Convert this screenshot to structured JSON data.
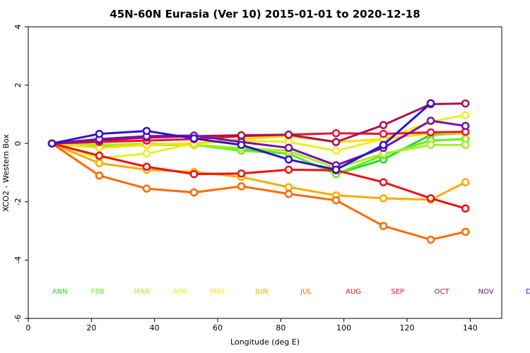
{
  "chart_data": {
    "type": "line",
    "title": "45N-60N Eurasia (Ver 10)   2015-01-01 to 2020-12-18",
    "xlabel": "Longitude (deg E)",
    "ylabel": "XCO2 - Western Box",
    "xlim": [
      0,
      150
    ],
    "ylim": [
      -6,
      4
    ],
    "xticks": [
      0,
      20,
      40,
      60,
      80,
      100,
      120,
      140
    ],
    "yticks": [
      -6,
      -4,
      -2,
      0,
      2,
      4
    ],
    "x": [
      7.5,
      22.5,
      37.5,
      52.5,
      67.5,
      82.5,
      97.5,
      112.5,
      127.5,
      138.5
    ],
    "legend_y": -5.15,
    "series": [
      {
        "name": "ANN",
        "color": "#22dd22",
        "label_x": 10,
        "values": [
          0,
          -0.1,
          0.0,
          -0.05,
          -0.2,
          -0.35,
          -1.05,
          -0.55,
          0.3,
          0.35
        ]
      },
      {
        "name": "FEB",
        "color": "#66ee22",
        "label_x": 22,
        "values": [
          0,
          -0.05,
          -0.05,
          -0.05,
          -0.25,
          -0.35,
          -1.05,
          -0.4,
          0.1,
          0.15
        ]
      },
      {
        "name": "MAR",
        "color": "#aaee22",
        "label_x": 36,
        "values": [
          0,
          -0.05,
          0.0,
          -0.05,
          -0.15,
          -0.25,
          -0.85,
          -0.35,
          -0.05,
          -0.05
        ]
      },
      {
        "name": "APR",
        "color": "#eeee22",
        "label_x": 48,
        "values": [
          0,
          -0.5,
          -0.35,
          0.0,
          0.1,
          0.05,
          -0.25,
          0.15,
          0.75,
          0.97
        ]
      },
      {
        "name": "MAY",
        "color": "#ffdd00",
        "label_x": 60,
        "values": [
          0,
          -0.15,
          -0.05,
          0.0,
          0.15,
          0.25,
          0.05,
          0.15,
          0.35,
          0.35
        ]
      },
      {
        "name": "JUN",
        "color": "#ffaa00",
        "label_x": 74,
        "values": [
          0,
          -0.68,
          -0.9,
          -0.98,
          -1.15,
          -1.5,
          -1.78,
          -1.88,
          -1.93,
          -1.33
        ]
      },
      {
        "name": "JUL",
        "color": "#ff6a00",
        "label_x": 88,
        "values": [
          0,
          -1.1,
          -1.55,
          -1.68,
          -1.47,
          -1.73,
          -1.95,
          -2.83,
          -3.3,
          -3.03
        ]
      },
      {
        "name": "AUG",
        "color": "#ee1111",
        "label_x": 103,
        "values": [
          0,
          -0.42,
          -0.8,
          -1.05,
          -1.03,
          -0.9,
          -0.92,
          -1.33,
          -1.88,
          -2.23
        ]
      },
      {
        "name": "SEP",
        "color": "#ee1133",
        "label_x": 117,
        "values": [
          0,
          0.05,
          0.1,
          0.15,
          0.25,
          0.3,
          0.35,
          0.33,
          0.38,
          0.4
        ]
      },
      {
        "name": "OCT",
        "color": "#aa1155",
        "label_x": 131,
        "values": [
          0,
          0.1,
          0.2,
          0.25,
          0.28,
          0.3,
          0.05,
          0.63,
          1.35,
          1.37
        ]
      },
      {
        "name": "NOV",
        "color": "#7711aa",
        "label_x": 145,
        "values": [
          0,
          0.15,
          0.25,
          0.27,
          0.05,
          -0.15,
          -0.75,
          -0.15,
          0.78,
          0.6
        ]
      },
      {
        "name": "DEC",
        "color": "#3311cc",
        "label_x": 160,
        "values": [
          0,
          0.33,
          0.43,
          0.17,
          -0.05,
          -0.55,
          -0.9,
          -0.05,
          1.38,
          null
        ]
      }
    ]
  }
}
